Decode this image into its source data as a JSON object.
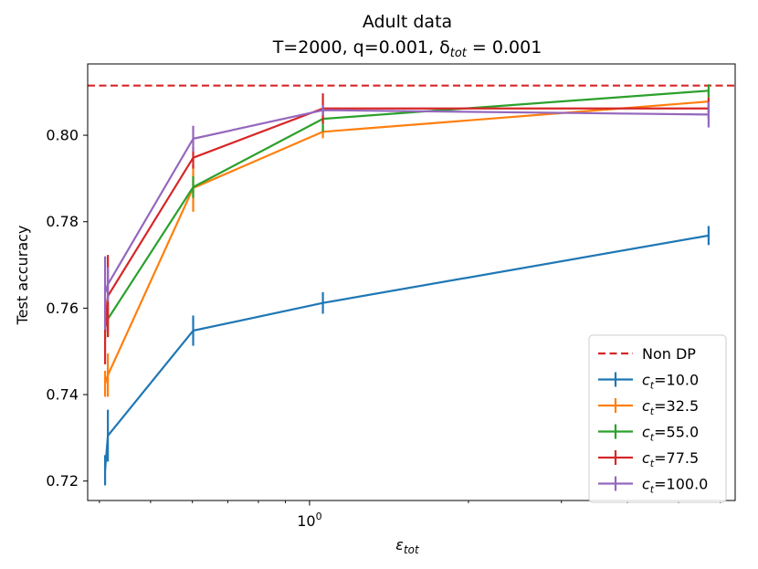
{
  "chart_data": {
    "type": "line",
    "title_line1": "Adult data",
    "title_line2": "T=2000, q=0.001, δ",
    "title_delta_sub": "tot",
    "title_line2_tail": " = 0.001",
    "xlabel_main": "ε",
    "xlabel_sub": "tot",
    "ylabel": "Test accuracy",
    "xscale": "log",
    "xlim": [
      0.38,
      6.4
    ],
    "ylim": [
      0.7155,
      0.8165
    ],
    "yticks": [
      0.72,
      0.74,
      0.76,
      0.78,
      0.8
    ],
    "ytick_labels": [
      "0.72",
      "0.74",
      "0.76",
      "0.78",
      "0.80"
    ],
    "xtick_major": [
      1
    ],
    "xtick_major_label_base": "10",
    "xtick_major_label_exp": "0",
    "xtick_minor": [
      0.4,
      0.5,
      0.6,
      0.7,
      0.8,
      0.9,
      2,
      3,
      4,
      5,
      6
    ],
    "x": [
      0.41,
      0.415,
      0.602,
      1.06,
      5.7
    ],
    "baseline": {
      "name": "Non DP",
      "value": 0.8115,
      "color": "#d62728"
    },
    "series": [
      {
        "name_main": "c",
        "name_sub": "t",
        "name_value": "=10.0",
        "color": "#1f77b4",
        "values": [
          0.7225,
          0.7305,
          0.7548,
          0.7612,
          0.7768
        ],
        "errors": [
          0.0035,
          0.006,
          0.0035,
          0.0025,
          0.0022
        ]
      },
      {
        "name_main": "c",
        "name_sub": "t",
        "name_value": "=32.5",
        "color": "#ff7f0e",
        "values": [
          0.7425,
          0.7445,
          0.7878,
          0.8008,
          0.8078
        ],
        "errors": [
          0.003,
          0.005,
          0.0055,
          0.0015,
          0.0025
        ]
      },
      {
        "name_main": "c",
        "name_sub": "t",
        "name_value": "=55.0",
        "color": "#2ca02c",
        "values": [
          0.7555,
          0.7575,
          0.788,
          0.8038,
          0.8103
        ],
        "errors": [
          0.0025,
          0.004,
          0.0025,
          0.003,
          0.0015
        ]
      },
      {
        "name_main": "c",
        "name_sub": "t",
        "name_value": "=77.5",
        "color": "#d62728",
        "values": [
          0.7545,
          0.7628,
          0.7948,
          0.8062,
          0.8062
        ],
        "errors": [
          0.0075,
          0.0095,
          0.0025,
          0.0035,
          0.0025
        ]
      },
      {
        "name_main": "c",
        "name_sub": "t",
        "name_value": "=100.0",
        "color": "#9467bd",
        "values": [
          0.7635,
          0.7655,
          0.7992,
          0.8058,
          0.8048
        ],
        "errors": [
          0.0085,
          0.004,
          0.003,
          0.0012,
          0.003
        ]
      }
    ],
    "legend_position": "lower-right"
  }
}
